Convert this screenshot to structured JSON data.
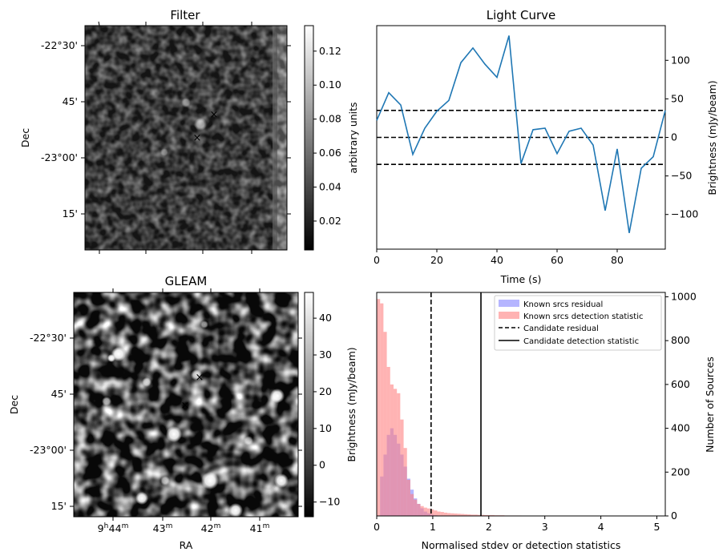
{
  "colors": {
    "line": "#1f77b4",
    "hist_known_residual": "#6b6bff",
    "hist_known_detection": "#ff8080",
    "marker_blue": "#1010ff",
    "marker_red": "#ff1010"
  },
  "chart_data": [
    {
      "id": "filter",
      "type": "heatmap",
      "title": "Filter",
      "ylabel": "Dec",
      "yticks": [
        "-22°30'",
        "45'",
        "-23°00'",
        "15'"
      ],
      "colorbar": {
        "label": "arbitrary units",
        "ticks": [
          "0.02",
          "0.04",
          "0.06",
          "0.08",
          "0.10",
          "0.12"
        ],
        "range": [
          0.003,
          0.135
        ],
        "cmap": "gray"
      }
    },
    {
      "id": "lightcurve",
      "type": "line",
      "title": "Light Curve",
      "xlabel": "Time (s)",
      "ylabel": "Brightness (mJy/beam)",
      "xlim": [
        0,
        96
      ],
      "ylim": [
        -145,
        145
      ],
      "xticks": [
        0,
        20,
        40,
        60,
        80
      ],
      "yticks": [
        -100,
        -50,
        0,
        50,
        100
      ],
      "x": [
        0,
        4,
        8,
        12,
        16,
        20,
        24,
        28,
        32,
        36,
        40,
        44,
        48,
        52,
        56,
        60,
        64,
        68,
        72,
        76,
        80,
        84,
        88,
        92,
        96
      ],
      "y": [
        22,
        58,
        42,
        -22,
        12,
        34,
        48,
        97,
        116,
        95,
        78,
        132,
        -34,
        10,
        12,
        -21,
        8,
        12,
        -10,
        -95,
        -15,
        -124,
        -40,
        -25,
        35
      ],
      "hlines": [
        {
          "y": 35,
          "style": "dashed"
        },
        {
          "y": 0,
          "style": "dashed"
        },
        {
          "y": -35,
          "style": "dashed"
        }
      ]
    },
    {
      "id": "gleam",
      "type": "heatmap",
      "title": "GLEAM",
      "xlabel": "RA",
      "ylabel": "Dec",
      "xticks": [
        {
          "pre": "9",
          "sup1": "h",
          "mid": "44",
          "sup2": "m"
        },
        {
          "pre": "",
          "sup1": "",
          "mid": "43",
          "sup2": "m"
        },
        {
          "pre": "",
          "sup1": "",
          "mid": "42",
          "sup2": "m"
        },
        {
          "pre": "",
          "sup1": "",
          "mid": "41",
          "sup2": "m"
        }
      ],
      "yticks": [
        "-22°30'",
        "45'",
        "-23°00'",
        "15'"
      ],
      "colorbar": {
        "label": "Brightness (mJy/beam)",
        "ticks": [
          "−10",
          "0",
          "10",
          "20",
          "30",
          "40"
        ],
        "range": [
          -14,
          47
        ],
        "cmap": "gray"
      }
    },
    {
      "id": "histogram",
      "type": "bar",
      "xlabel": "Normalised stdev or detection statistics",
      "ylabel_left": "Brightness (mJy/beam)",
      "ylabel_right": "Number of Sources",
      "xlim": [
        0,
        5.15
      ],
      "ylim": [
        0,
        1020
      ],
      "xticks": [
        0,
        1,
        2,
        3,
        4,
        5
      ],
      "yticks": [
        0,
        200,
        400,
        600,
        800,
        1000
      ],
      "bin_width": 0.06,
      "series": [
        {
          "name": "Known srcs residual",
          "bin_start": 0,
          "values": [
            2,
            180,
            280,
            370,
            400,
            370,
            330,
            280,
            225,
            170,
            120,
            80,
            55,
            35,
            20,
            12,
            6,
            3,
            1
          ]
        },
        {
          "name": "Known srcs detection statistic",
          "bin_start": 0,
          "values": [
            990,
            970,
            840,
            680,
            600,
            580,
            560,
            440,
            310,
            165,
            100,
            75,
            55,
            45,
            38,
            34,
            30,
            25,
            20,
            18,
            15,
            13,
            12,
            11,
            10,
            9,
            8,
            7,
            6,
            6,
            5,
            5,
            4,
            4,
            4,
            3,
            3,
            3,
            2,
            2,
            2,
            2,
            2,
            1,
            1,
            1,
            1,
            1,
            1,
            1
          ]
        }
      ],
      "vlines": [
        {
          "name": "Candidate residual",
          "x": 0.97,
          "style": "dashed"
        },
        {
          "name": "Candidate detection statistic",
          "x": 1.86,
          "style": "solid"
        }
      ],
      "legend": "top-right"
    }
  ]
}
